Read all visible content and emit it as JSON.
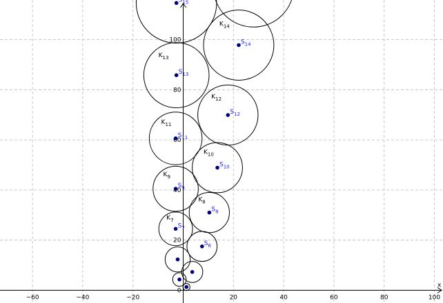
{
  "axes": {
    "x_label": "x",
    "x_ticks": [
      "−60",
      "−40",
      "−20",
      "0",
      "20",
      "40",
      "60",
      "80",
      "100"
    ],
    "y_ticks": [
      "0",
      "20",
      "40",
      "60",
      "80",
      "100"
    ],
    "x_tick_values": [
      -60,
      -40,
      -20,
      0,
      20,
      40,
      60,
      80,
      100
    ],
    "y_tick_values": [
      0,
      20,
      40,
      60,
      80,
      100
    ],
    "x_range": [
      -71,
      102
    ],
    "y_range": [
      -1.5,
      115
    ],
    "grid": true
  },
  "circles": [
    {
      "name": "",
      "x": 1.3,
      "y": 1.3,
      "r": 1.4
    },
    {
      "name": "",
      "x": -1.5,
      "y": 4.3,
      "r": 2.7
    },
    {
      "name": "",
      "x": 3.6,
      "y": 7.3,
      "r": 4.2
    },
    {
      "name": "",
      "x": -2.2,
      "y": 12.3,
      "r": 5.0
    },
    {
      "name": "",
      "x": 7.5,
      "y": 17.5,
      "r": 6.0
    },
    {
      "name": "K",
      "sub": "7",
      "x": -3.0,
      "y": 24.5,
      "r": 6.7
    },
    {
      "name": "K",
      "sub": "8",
      "x": 10.4,
      "y": 31.0,
      "r": 8.0
    },
    {
      "name": "K",
      "sub": "9",
      "x": -3.0,
      "y": 40.5,
      "r": 9.0
    },
    {
      "name": "K",
      "sub": "10",
      "x": 13.6,
      "y": 48.9,
      "r": 10.0
    },
    {
      "name": "K",
      "sub": "11",
      "x": -3.0,
      "y": 60.6,
      "r": 10.5
    },
    {
      "name": "K",
      "sub": "12",
      "x": 17.8,
      "y": 69.9,
      "r": 12.0
    },
    {
      "name": "K",
      "sub": "13",
      "x": -2.7,
      "y": 85.8,
      "r": 13.0
    },
    {
      "name": "K",
      "sub": "14",
      "x": 22.1,
      "y": 97.8,
      "r": 14.0
    },
    {
      "name": "",
      "x": -2.7,
      "y": 114.6,
      "r": 16.0
    },
    {
      "name": "",
      "x": 28.0,
      "y": 121.0,
      "r": 16.0
    }
  ],
  "centers": [
    {
      "name": "S",
      "sub": "6",
      "x": 7.5,
      "y": 17.5
    },
    {
      "name": "S",
      "sub": "7",
      "x": -3.0,
      "y": 24.5
    },
    {
      "name": "S",
      "sub": "8",
      "x": 10.4,
      "y": 31.0
    },
    {
      "name": "S",
      "sub": "9",
      "x": -3.0,
      "y": 40.5
    },
    {
      "name": "S",
      "sub": "10",
      "x": 13.6,
      "y": 48.9
    },
    {
      "name": "S",
      "sub": "11",
      "x": -3.0,
      "y": 60.6
    },
    {
      "name": "S",
      "sub": "12",
      "x": 17.8,
      "y": 69.9
    },
    {
      "name": "S",
      "sub": "13",
      "x": -2.7,
      "y": 85.8
    },
    {
      "name": "S",
      "sub": "14",
      "x": 22.1,
      "y": 97.8
    },
    {
      "name": "S",
      "sub": "15",
      "x": -2.7,
      "y": 114.6
    },
    {
      "name": "",
      "x": 1.3,
      "y": 1.3
    },
    {
      "name": "",
      "x": -1.5,
      "y": 4.3
    },
    {
      "name": "",
      "x": 3.6,
      "y": 7.3
    },
    {
      "name": "",
      "x": -2.2,
      "y": 12.3
    }
  ],
  "colors": {
    "grid": "#b9b9b9",
    "axis": "#000000",
    "circle_stroke": "#000000",
    "center_point": "#00007f",
    "center_label": "#1a1aff"
  }
}
